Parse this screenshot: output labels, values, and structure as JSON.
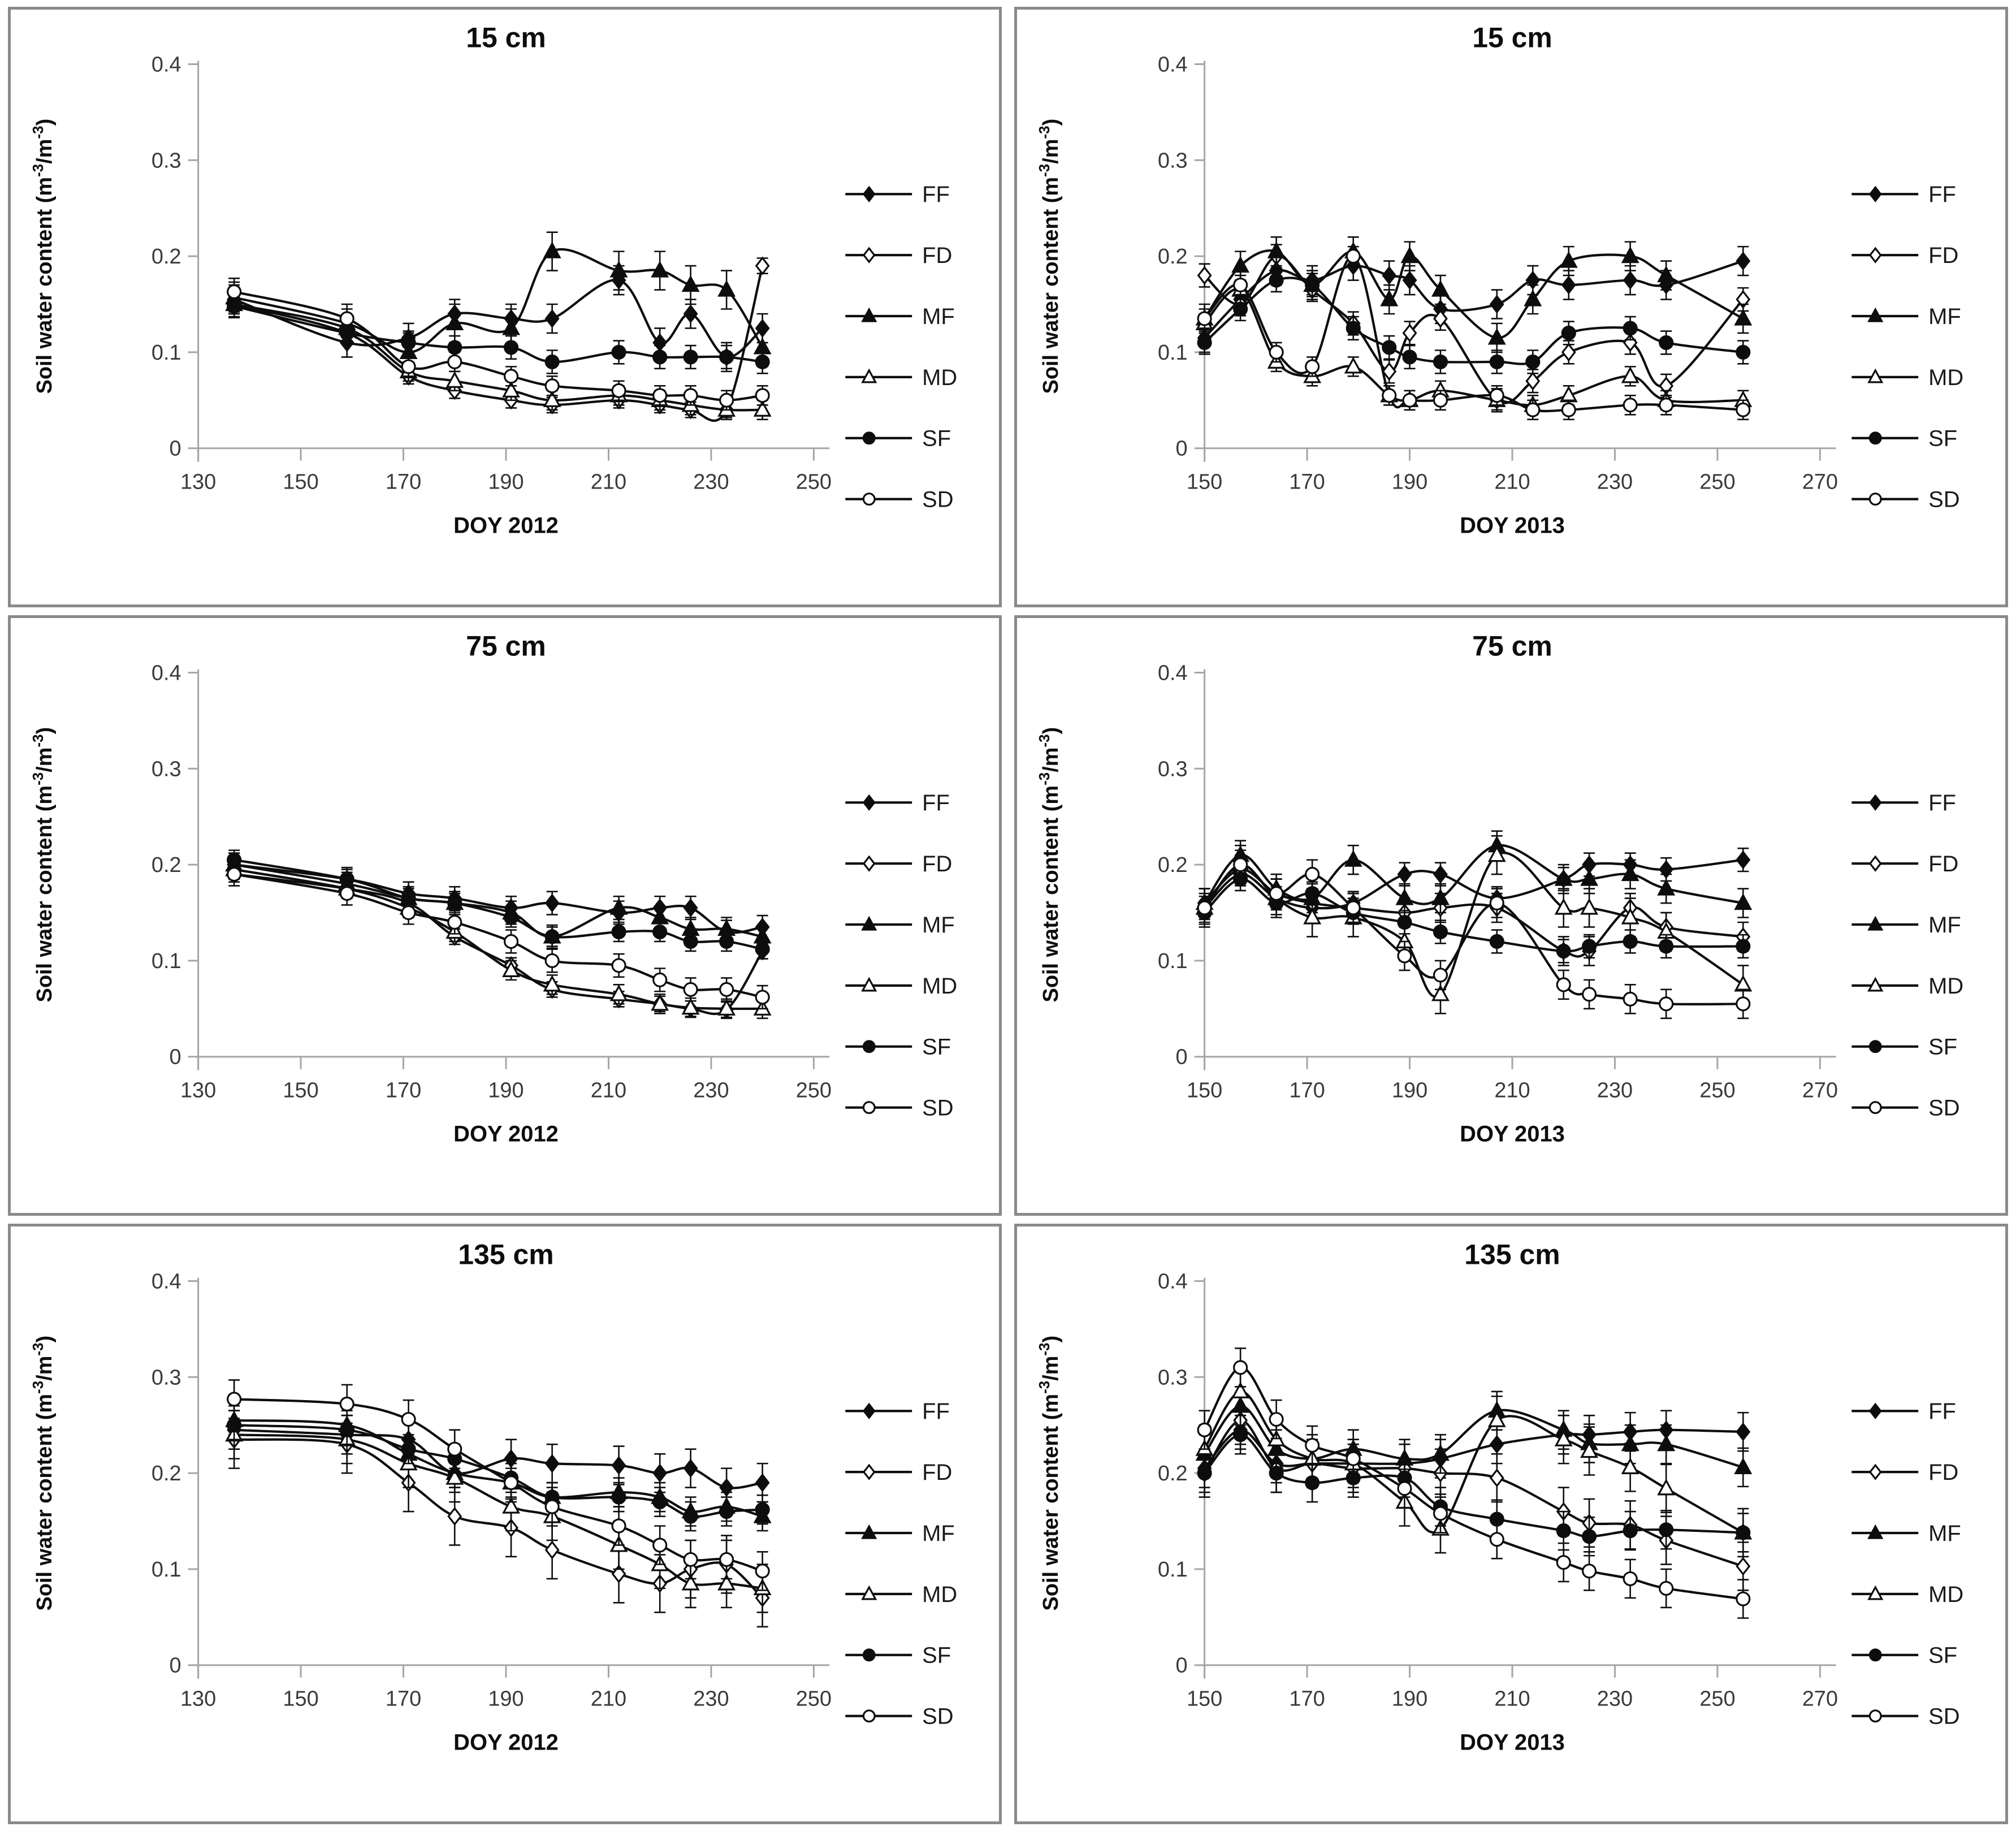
{
  "figure": {
    "description": "Six-panel soil water content time series figure (two columns: years 2012 and 2013; three rows: depths 15, 75, 135 cm)",
    "ylabel_parts": [
      {
        "t": "Soil water content (m"
      },
      {
        "t": "-3",
        "sup": true
      },
      {
        "t": "/m"
      },
      {
        "t": "-3",
        "sup": true
      },
      {
        "t": ")"
      }
    ],
    "colors": {
      "series": "#0d0d0d",
      "axis": "#a6a6a6",
      "tick_text": "#3a3a3a",
      "panel_border": "#8a8a8a"
    }
  },
  "legend": {
    "position": "right-of-plot",
    "items": [
      {
        "label": "FF",
        "marker": "diamond",
        "fill": true
      },
      {
        "label": "FD",
        "marker": "diamond",
        "fill": false
      },
      {
        "label": "MF",
        "marker": "triangle",
        "fill": true
      },
      {
        "label": "MD",
        "marker": "triangle",
        "fill": false
      },
      {
        "label": "SF",
        "marker": "circle",
        "fill": true
      },
      {
        "label": "SD",
        "marker": "circle",
        "fill": false
      }
    ]
  },
  "chart_data": [
    {
      "type": "line",
      "title": "15 cm",
      "xlabel": "DOY 2012",
      "xlim": [
        130,
        250
      ],
      "xticks": [
        130,
        150,
        170,
        190,
        210,
        230,
        250
      ],
      "ylim": [
        0,
        0.4
      ],
      "yticks": [
        0,
        0.1,
        0.2,
        0.3,
        0.4
      ],
      "grid": false,
      "x": [
        137,
        159,
        171,
        180,
        191,
        199,
        212,
        220,
        226,
        233,
        240
      ],
      "series": [
        {
          "name": "FF",
          "marker": "diamond",
          "fill": true,
          "err": 0.015,
          "values": [
            0.155,
            0.11,
            0.115,
            0.14,
            0.135,
            0.135,
            0.175,
            0.11,
            0.14,
            0.095,
            0.125
          ]
        },
        {
          "name": "FD",
          "marker": "diamond",
          "fill": false,
          "err": 0.008,
          "values": [
            0.15,
            0.12,
            0.075,
            0.06,
            0.05,
            0.045,
            0.05,
            0.045,
            0.04,
            0.04,
            0.19
          ]
        },
        {
          "name": "MF",
          "marker": "triangle",
          "fill": true,
          "err": 0.02,
          "values": [
            0.157,
            0.13,
            0.1,
            0.13,
            0.125,
            0.205,
            0.185,
            0.185,
            0.17,
            0.165,
            0.105
          ]
        },
        {
          "name": "MD",
          "marker": "triangle",
          "fill": false,
          "err": 0.01,
          "values": [
            0.15,
            0.125,
            0.08,
            0.07,
            0.06,
            0.05,
            0.055,
            0.05,
            0.045,
            0.04,
            0.04
          ]
        },
        {
          "name": "SF",
          "marker": "circle",
          "fill": true,
          "err": 0.012,
          "values": [
            0.148,
            0.12,
            0.11,
            0.105,
            0.105,
            0.09,
            0.1,
            0.095,
            0.095,
            0.095,
            0.09
          ]
        },
        {
          "name": "SD",
          "marker": "circle",
          "fill": false,
          "err": 0.01,
          "values": [
            0.163,
            0.135,
            0.085,
            0.09,
            0.075,
            0.065,
            0.06,
            0.055,
            0.055,
            0.05,
            0.055
          ]
        }
      ]
    },
    {
      "type": "line",
      "title": "15 cm",
      "xlabel": "DOY 2013",
      "xlim": [
        150,
        270
      ],
      "xticks": [
        150,
        170,
        190,
        210,
        230,
        250,
        270
      ],
      "ylim": [
        0,
        0.4
      ],
      "yticks": [
        0,
        0.1,
        0.2,
        0.3,
        0.4
      ],
      "grid": false,
      "x": [
        150,
        157,
        164,
        171,
        179,
        186,
        190,
        196,
        207,
        214,
        221,
        233,
        240,
        255
      ],
      "series": [
        {
          "name": "FF",
          "marker": "diamond",
          "fill": true,
          "err": 0.015,
          "values": [
            0.115,
            0.155,
            0.185,
            0.175,
            0.19,
            0.18,
            0.175,
            0.145,
            0.15,
            0.175,
            0.17,
            0.175,
            0.17,
            0.195
          ]
        },
        {
          "name": "FD",
          "marker": "diamond",
          "fill": false,
          "err": 0.012,
          "values": [
            0.18,
            0.15,
            0.2,
            0.165,
            0.13,
            0.08,
            0.12,
            0.135,
            0.05,
            0.07,
            0.1,
            0.11,
            0.065,
            0.155
          ]
        },
        {
          "name": "MF",
          "marker": "triangle",
          "fill": true,
          "err": 0.015,
          "values": [
            0.135,
            0.19,
            0.205,
            0.17,
            0.205,
            0.155,
            0.2,
            0.165,
            0.115,
            0.155,
            0.195,
            0.2,
            0.18,
            0.135
          ]
        },
        {
          "name": "MD",
          "marker": "triangle",
          "fill": false,
          "err": 0.01,
          "values": [
            0.13,
            0.165,
            0.09,
            0.075,
            0.085,
            0.055,
            0.05,
            0.06,
            0.05,
            0.045,
            0.055,
            0.075,
            0.05,
            0.05
          ]
        },
        {
          "name": "SF",
          "marker": "circle",
          "fill": true,
          "err": 0.012,
          "values": [
            0.11,
            0.145,
            0.175,
            0.17,
            0.125,
            0.105,
            0.095,
            0.09,
            0.09,
            0.09,
            0.12,
            0.125,
            0.11,
            0.1
          ]
        },
        {
          "name": "SD",
          "marker": "circle",
          "fill": false,
          "err": 0.01,
          "values": [
            0.135,
            0.17,
            0.1,
            0.085,
            0.2,
            0.055,
            0.05,
            0.05,
            0.055,
            0.04,
            0.04,
            0.045,
            0.045,
            0.04
          ]
        }
      ]
    },
    {
      "type": "line",
      "title": "75 cm",
      "xlabel": "DOY 2012",
      "xlim": [
        130,
        250
      ],
      "xticks": [
        130,
        150,
        170,
        190,
        210,
        230,
        250
      ],
      "ylim": [
        0,
        0.4
      ],
      "yticks": [
        0,
        0.1,
        0.2,
        0.3,
        0.4
      ],
      "grid": false,
      "x": [
        137,
        159,
        171,
        180,
        191,
        199,
        212,
        220,
        226,
        233,
        240
      ],
      "series": [
        {
          "name": "FF",
          "marker": "diamond",
          "fill": true,
          "err": 0.012,
          "values": [
            0.2,
            0.185,
            0.17,
            0.165,
            0.155,
            0.16,
            0.15,
            0.155,
            0.155,
            0.13,
            0.135
          ]
        },
        {
          "name": "FD",
          "marker": "diamond",
          "fill": false,
          "err": 0.008,
          "values": [
            0.19,
            0.175,
            0.16,
            0.125,
            0.095,
            0.07,
            0.06,
            0.055,
            0.05,
            0.049,
            0.11
          ]
        },
        {
          "name": "MF",
          "marker": "triangle",
          "fill": true,
          "err": 0.012,
          "values": [
            0.2,
            0.18,
            0.165,
            0.16,
            0.15,
            0.125,
            0.155,
            0.145,
            0.133,
            0.133,
            0.125
          ]
        },
        {
          "name": "MD",
          "marker": "triangle",
          "fill": false,
          "err": 0.01,
          "values": [
            0.195,
            0.175,
            0.155,
            0.13,
            0.09,
            0.075,
            0.065,
            0.055,
            0.051,
            0.05,
            0.05
          ]
        },
        {
          "name": "SF",
          "marker": "circle",
          "fill": true,
          "err": 0.01,
          "values": [
            0.205,
            0.185,
            0.165,
            0.16,
            0.145,
            0.125,
            0.13,
            0.13,
            0.12,
            0.12,
            0.112
          ]
        },
        {
          "name": "SD",
          "marker": "circle",
          "fill": false,
          "err": 0.012,
          "values": [
            0.19,
            0.17,
            0.15,
            0.14,
            0.12,
            0.1,
            0.095,
            0.08,
            0.07,
            0.07,
            0.062
          ]
        }
      ]
    },
    {
      "type": "line",
      "title": "75 cm",
      "xlabel": "DOY 2013",
      "xlim": [
        150,
        270
      ],
      "xticks": [
        150,
        170,
        190,
        210,
        230,
        250,
        270
      ],
      "ylim": [
        0,
        0.4
      ],
      "yticks": [
        0,
        0.1,
        0.2,
        0.3,
        0.4
      ],
      "grid": false,
      "x": [
        150,
        157,
        164,
        171,
        179,
        189,
        196,
        207,
        220,
        225,
        233,
        240,
        255
      ],
      "series": [
        {
          "name": "FF",
          "marker": "diamond",
          "fill": true,
          "err": 0.012,
          "values": [
            0.155,
            0.19,
            0.165,
            0.155,
            0.16,
            0.19,
            0.19,
            0.165,
            0.185,
            0.2,
            0.2,
            0.195,
            0.205
          ]
        },
        {
          "name": "FD",
          "marker": "diamond",
          "fill": false,
          "err": 0.015,
          "values": [
            0.16,
            0.195,
            0.17,
            0.16,
            0.155,
            0.15,
            0.155,
            0.155,
            0.11,
            0.11,
            0.155,
            0.135,
            0.125
          ]
        },
        {
          "name": "MF",
          "marker": "triangle",
          "fill": true,
          "err": 0.015,
          "values": [
            0.16,
            0.21,
            0.175,
            0.165,
            0.205,
            0.165,
            0.165,
            0.22,
            0.185,
            0.185,
            0.19,
            0.175,
            0.16
          ]
        },
        {
          "name": "MD",
          "marker": "triangle",
          "fill": false,
          "err": 0.02,
          "values": [
            0.155,
            0.2,
            0.165,
            0.145,
            0.145,
            0.12,
            0.065,
            0.21,
            0.155,
            0.155,
            0.145,
            0.13,
            0.075
          ]
        },
        {
          "name": "SF",
          "marker": "circle",
          "fill": true,
          "err": 0.012,
          "values": [
            0.15,
            0.185,
            0.16,
            0.17,
            0.15,
            0.14,
            0.13,
            0.12,
            0.11,
            0.115,
            0.12,
            0.115,
            0.115
          ]
        },
        {
          "name": "SD",
          "marker": "circle",
          "fill": false,
          "err": 0.015,
          "values": [
            0.155,
            0.2,
            0.17,
            0.19,
            0.155,
            0.105,
            0.085,
            0.16,
            0.075,
            0.065,
            0.06,
            0.055,
            0.055
          ]
        }
      ]
    },
    {
      "type": "line",
      "title": "135 cm",
      "xlabel": "DOY 2012",
      "xlim": [
        130,
        250
      ],
      "xticks": [
        130,
        150,
        170,
        190,
        210,
        230,
        250
      ],
      "ylim": [
        0,
        0.4
      ],
      "yticks": [
        0,
        0.1,
        0.2,
        0.3,
        0.4
      ],
      "grid": false,
      "x": [
        137,
        159,
        171,
        180,
        191,
        199,
        212,
        220,
        226,
        233,
        240
      ],
      "series": [
        {
          "name": "FF",
          "marker": "diamond",
          "fill": true,
          "err": 0.02,
          "values": [
            0.245,
            0.24,
            0.235,
            0.2,
            0.215,
            0.21,
            0.208,
            0.2,
            0.205,
            0.185,
            0.19
          ]
        },
        {
          "name": "FD",
          "marker": "diamond",
          "fill": false,
          "err": 0.03,
          "values": [
            0.235,
            0.23,
            0.19,
            0.155,
            0.143,
            0.12,
            0.095,
            0.085,
            0.1,
            0.105,
            0.07
          ]
        },
        {
          "name": "MF",
          "marker": "triangle",
          "fill": true,
          "err": 0.015,
          "values": [
            0.255,
            0.25,
            0.22,
            0.2,
            0.19,
            0.175,
            0.18,
            0.175,
            0.16,
            0.165,
            0.155
          ]
        },
        {
          "name": "MD",
          "marker": "triangle",
          "fill": false,
          "err": 0.025,
          "values": [
            0.24,
            0.235,
            0.21,
            0.195,
            0.165,
            0.155,
            0.125,
            0.105,
            0.085,
            0.085,
            0.08
          ]
        },
        {
          "name": "SF",
          "marker": "circle",
          "fill": true,
          "err": 0.015,
          "values": [
            0.25,
            0.245,
            0.225,
            0.215,
            0.195,
            0.175,
            0.175,
            0.17,
            0.155,
            0.16,
            0.162
          ]
        },
        {
          "name": "SD",
          "marker": "circle",
          "fill": false,
          "err": 0.02,
          "values": [
            0.277,
            0.272,
            0.256,
            0.225,
            0.19,
            0.165,
            0.145,
            0.125,
            0.11,
            0.11,
            0.098
          ]
        }
      ]
    },
    {
      "type": "line",
      "title": "135 cm",
      "xlabel": "DOY 2013",
      "xlim": [
        150,
        270
      ],
      "xticks": [
        150,
        170,
        190,
        210,
        230,
        250,
        270
      ],
      "ylim": [
        0,
        0.4
      ],
      "yticks": [
        0,
        0.1,
        0.2,
        0.3,
        0.4
      ],
      "grid": false,
      "x": [
        150,
        157,
        164,
        171,
        179,
        189,
        196,
        207,
        220,
        225,
        233,
        240,
        255
      ],
      "series": [
        {
          "name": "FF",
          "marker": "diamond",
          "fill": true,
          "err": 0.02,
          "values": [
            0.205,
            0.245,
            0.21,
            0.21,
            0.21,
            0.21,
            0.215,
            0.23,
            0.24,
            0.24,
            0.243,
            0.245,
            0.243
          ]
        },
        {
          "name": "FD",
          "marker": "diamond",
          "fill": false,
          "err": 0.025,
          "values": [
            0.2,
            0.255,
            0.205,
            0.21,
            0.205,
            0.205,
            0.2,
            0.195,
            0.16,
            0.148,
            0.146,
            0.13,
            0.103
          ]
        },
        {
          "name": "MF",
          "marker": "triangle",
          "fill": true,
          "err": 0.02,
          "values": [
            0.22,
            0.27,
            0.225,
            0.215,
            0.225,
            0.215,
            0.22,
            0.265,
            0.245,
            0.231,
            0.23,
            0.23,
            0.206
          ]
        },
        {
          "name": "MD",
          "marker": "triangle",
          "fill": false,
          "err": 0.025,
          "values": [
            0.225,
            0.285,
            0.235,
            0.215,
            0.21,
            0.17,
            0.142,
            0.255,
            0.235,
            0.223,
            0.206,
            0.184,
            0.138
          ]
        },
        {
          "name": "SF",
          "marker": "circle",
          "fill": true,
          "err": 0.02,
          "values": [
            0.2,
            0.24,
            0.2,
            0.19,
            0.195,
            0.195,
            0.165,
            0.152,
            0.14,
            0.134,
            0.14,
            0.141,
            0.138
          ]
        },
        {
          "name": "SD",
          "marker": "circle",
          "fill": false,
          "err": 0.02,
          "values": [
            0.245,
            0.31,
            0.256,
            0.229,
            0.215,
            0.184,
            0.158,
            0.131,
            0.107,
            0.098,
            0.09,
            0.08,
            0.069
          ]
        }
      ]
    }
  ]
}
